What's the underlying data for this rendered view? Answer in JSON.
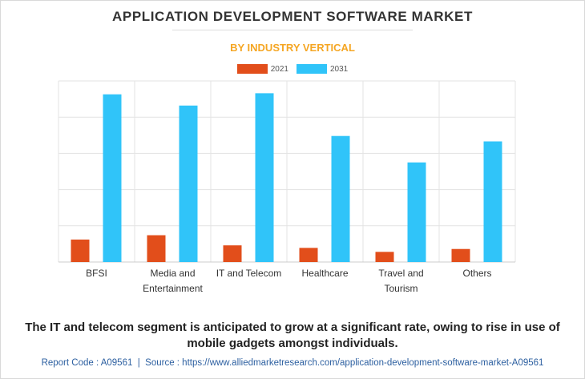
{
  "title": "APPLICATION DEVELOPMENT SOFTWARE MARKET",
  "subtitle": "BY INDUSTRY VERTICAL",
  "colors": {
    "s2021": "#e24e1b",
    "s2031": "#30c4f9",
    "title": "#333333",
    "subtitle": "#f5a623",
    "footer": "#2c5fa0"
  },
  "caption": "The IT and telecom segment is anticipated to grow at a significant rate, owing to rise in use of mobile gadgets amongst individuals.",
  "footer": {
    "report_code": "Report Code : A09561",
    "separator": "|",
    "source": "Source : https://www.alliedmarketresearch.com/application-development-software-market-A09561"
  },
  "chart_data": {
    "type": "bar",
    "title": "APPLICATION DEVELOPMENT SOFTWARE MARKET",
    "subtitle": "BY INDUSTRY VERTICAL",
    "categories": [
      [
        "BFSI"
      ],
      [
        "Media and",
        "Entertainment"
      ],
      [
        "IT and Telecom"
      ],
      [
        "Healthcare"
      ],
      [
        "Travel and",
        "Tourism"
      ],
      [
        "Others"
      ]
    ],
    "series": [
      {
        "name": "2021",
        "values": [
          6.2,
          7.4,
          4.6,
          3.9,
          2.8,
          3.6
        ]
      },
      {
        "name": "2031",
        "values": [
          46.3,
          43.2,
          46.6,
          34.8,
          27.5,
          33.3
        ]
      }
    ],
    "ylim": [
      0,
      50
    ],
    "grid": true,
    "legend": "top-center",
    "ytick_labels_shown": false
  }
}
